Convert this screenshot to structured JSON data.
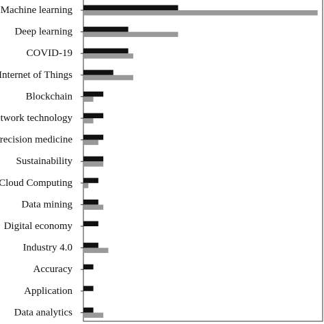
{
  "chart_data": {
    "type": "bar",
    "orientation": "horizontal",
    "title": "",
    "xlabel": "",
    "ylabel": "",
    "categories": [
      "Machine learning",
      "Deep learning",
      "COVID-19",
      "Internet of Things",
      "Blockchain",
      "Network technology",
      "Precision medicine",
      "Sustainability",
      "Cloud Computing",
      "Data mining",
      "Digital economy",
      "Industry 4.0",
      "Accuracy",
      "Application",
      "Data analytics"
    ],
    "series": [
      {
        "color": "#111111",
        "values": [
          19,
          9,
          9,
          6,
          4,
          4,
          4,
          4,
          3,
          3,
          3,
          3,
          2,
          2,
          2
        ]
      },
      {
        "color": "#999999",
        "values": [
          47,
          19,
          10,
          10,
          2,
          2,
          3,
          4,
          1,
          4,
          0,
          5,
          0,
          0,
          4
        ]
      }
    ],
    "xlim": [
      0,
      48
    ],
    "grid": false,
    "legend": "none",
    "axis_color": "#333333"
  }
}
